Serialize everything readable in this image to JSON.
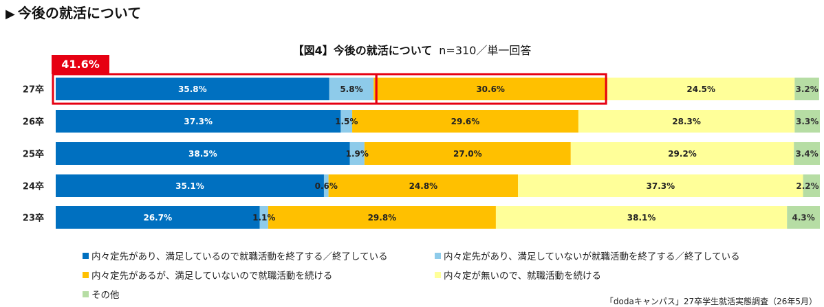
{
  "heading": "今後の就活について",
  "heading_marker": "▶",
  "chart_data": {
    "type": "bar",
    "orientation": "horizontal",
    "stacked": true,
    "percent_stacked": true,
    "title": "【図4】今後の就活について",
    "subtitle": "n=310／単一回答",
    "categories": [
      "27卒",
      "26卒",
      "25卒",
      "24卒",
      "23卒"
    ],
    "series": [
      {
        "name": "内々定先があり、満足しているので就職活動を終了する／終了している",
        "color": "#0070c0",
        "values": [
          35.8,
          37.3,
          38.5,
          35.1,
          26.7
        ]
      },
      {
        "name": "内々定先があり、満足していないが就職活動を終了する／終了している",
        "color": "#8ecbea",
        "values": [
          5.8,
          1.5,
          1.9,
          0.6,
          1.1
        ]
      },
      {
        "name": "内々定先があるが、満足していないので就職活動を続ける",
        "color": "#ffc000",
        "values": [
          30.6,
          29.6,
          27.0,
          24.8,
          29.8
        ]
      },
      {
        "name": "内々定が無いので、就職活動を続ける",
        "color": "#ffff99",
        "values": [
          24.5,
          28.3,
          29.2,
          37.3,
          38.1
        ]
      },
      {
        "name": "その他",
        "color": "#b6dda4",
        "values": [
          3.2,
          3.3,
          3.4,
          2.2,
          4.3
        ]
      }
    ],
    "value_suffix": "%",
    "callout": {
      "label": "41.6%",
      "category": "27卒",
      "series_indices": [
        0,
        1
      ]
    },
    "highlight": {
      "category": "27卒",
      "series_indices": [
        2
      ]
    },
    "legend_position": "bottom",
    "grid": false
  },
  "source_note": "「dodaキャンパス」27卒学生就活実態調査（26年5月）"
}
